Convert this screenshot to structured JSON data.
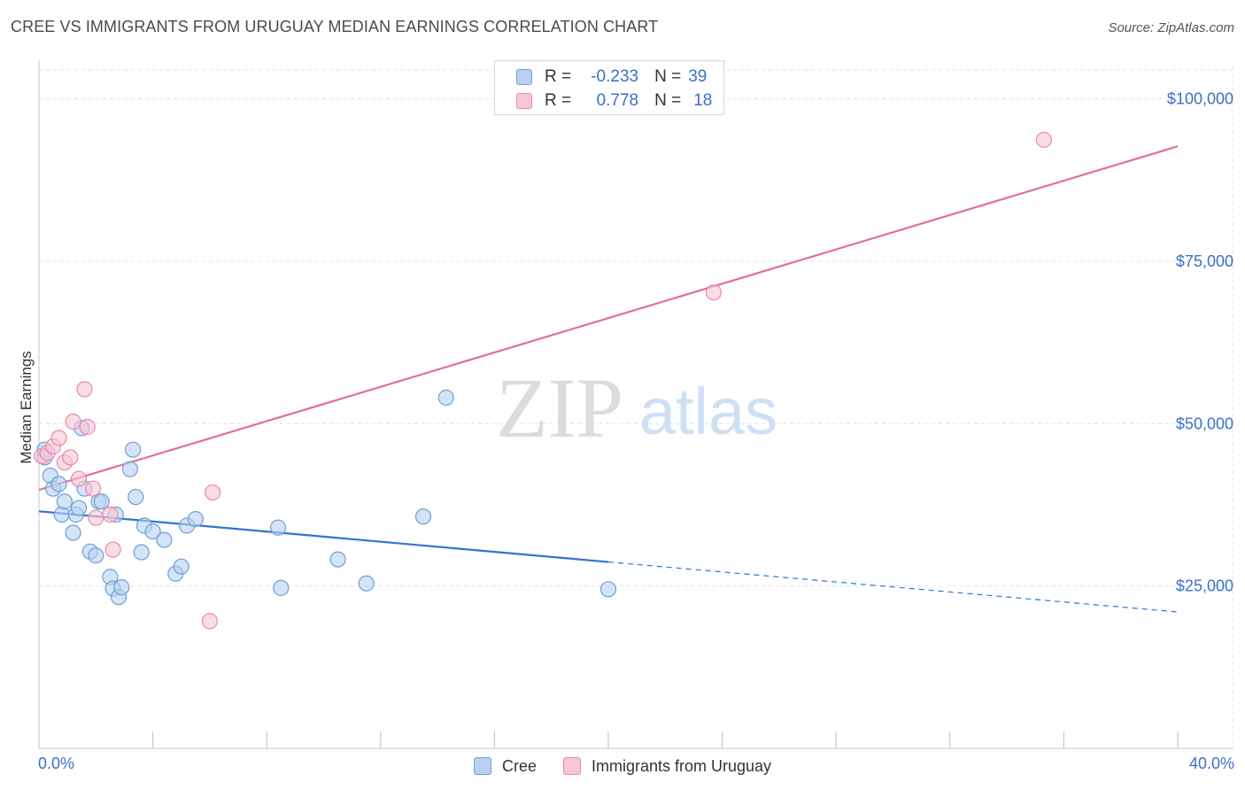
{
  "title": "CREE VS IMMIGRANTS FROM URUGUAY MEDIAN EARNINGS CORRELATION CHART",
  "source": "Source: ZipAtlas.com",
  "watermark": {
    "part1": "ZIP",
    "part2": "atlas"
  },
  "colors": {
    "cree_fill": "#b8d0f2",
    "cree_stroke": "#6f9fd8",
    "cree_line": "#2f74d0",
    "uruguay_fill": "#f8c6d6",
    "uruguay_stroke": "#e88aa8",
    "uruguay_line": "#e07096",
    "tick_text": "#3a70c8",
    "grid": "#e3e3e3"
  },
  "stats_legend": {
    "rows": [
      {
        "r_label": "R =",
        "r_value": "-0.233",
        "n_label": "N =",
        "n_value": "39"
      },
      {
        "r_label": "R =",
        "r_value": "0.778",
        "n_label": "N =",
        "n_value": "18"
      }
    ]
  },
  "bottom_legend": {
    "cree": "Cree",
    "uruguay": "Immigrants from Uruguay"
  },
  "x_edge_labels": {
    "left": "0.0%",
    "right": "40.0%"
  },
  "chart_data": {
    "type": "scatter",
    "title": "CREE VS IMMIGRANTS FROM URUGUAY MEDIAN EARNINGS CORRELATION CHART",
    "xlabel": "",
    "ylabel": "Median Earnings",
    "xlim": [
      0,
      40
    ],
    "ylim": [
      0,
      105000
    ],
    "y_ticks": [
      {
        "value": 25000,
        "label": "$25,000"
      },
      {
        "value": 50000,
        "label": "$50,000"
      },
      {
        "value": 75000,
        "label": "$75,000"
      },
      {
        "value": 100000,
        "label": "$100,000"
      }
    ],
    "x_ticks": [
      0,
      4,
      8,
      12,
      16,
      20,
      24,
      28,
      32,
      36,
      40
    ],
    "series": [
      {
        "name": "Cree",
        "r": -0.233,
        "n": 39,
        "points": [
          [
            0.2,
            46000
          ],
          [
            0.2,
            44800
          ],
          [
            0.4,
            42000
          ],
          [
            0.5,
            40000
          ],
          [
            0.7,
            40700
          ],
          [
            0.8,
            36000
          ],
          [
            0.9,
            38000
          ],
          [
            1.2,
            33200
          ],
          [
            1.3,
            36000
          ],
          [
            1.4,
            37000
          ],
          [
            1.5,
            49300
          ],
          [
            1.6,
            40000
          ],
          [
            1.8,
            30300
          ],
          [
            2.0,
            29700
          ],
          [
            2.1,
            38000
          ],
          [
            2.2,
            38000
          ],
          [
            2.5,
            26400
          ],
          [
            2.6,
            24600
          ],
          [
            2.7,
            36000
          ],
          [
            2.8,
            23300
          ],
          [
            2.9,
            24800
          ],
          [
            3.2,
            43000
          ],
          [
            3.3,
            46000
          ],
          [
            3.4,
            38700
          ],
          [
            3.6,
            30200
          ],
          [
            3.7,
            34300
          ],
          [
            4.0,
            33400
          ],
          [
            4.4,
            32100
          ],
          [
            4.8,
            26900
          ],
          [
            5.0,
            28000
          ],
          [
            5.2,
            34300
          ],
          [
            5.5,
            35300
          ],
          [
            8.4,
            34000
          ],
          [
            8.5,
            24700
          ],
          [
            10.5,
            29100
          ],
          [
            11.5,
            25400
          ],
          [
            13.5,
            35700
          ],
          [
            14.3,
            54000
          ],
          [
            20.0,
            24500
          ]
        ],
        "trend": {
          "x": [
            0,
            20
          ],
          "y": [
            36500,
            28700
          ],
          "dashed_to": [
            40,
            21000
          ]
        }
      },
      {
        "name": "Immigrants from Uruguay",
        "r": 0.778,
        "n": 18,
        "points": [
          [
            0.1,
            45000
          ],
          [
            0.3,
            45500
          ],
          [
            0.5,
            46500
          ],
          [
            0.7,
            47800
          ],
          [
            0.9,
            44000
          ],
          [
            1.1,
            44800
          ],
          [
            1.2,
            50300
          ],
          [
            1.4,
            41500
          ],
          [
            1.6,
            55300
          ],
          [
            1.7,
            49500
          ],
          [
            1.9,
            40000
          ],
          [
            2.0,
            35500
          ],
          [
            2.5,
            36000
          ],
          [
            2.6,
            30600
          ],
          [
            6.0,
            19600
          ],
          [
            6.1,
            39400
          ],
          [
            23.7,
            70200
          ],
          [
            35.3,
            93700
          ]
        ],
        "trend": {
          "x": [
            0,
            40
          ],
          "y": [
            39800,
            92700
          ]
        }
      }
    ]
  }
}
